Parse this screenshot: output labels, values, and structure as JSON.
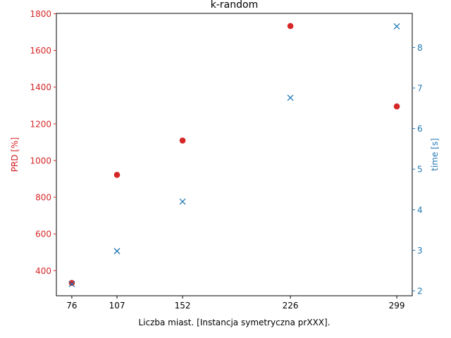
{
  "chart_data": {
    "type": "scatter",
    "title": "k-random",
    "xlabel": "Liczba miast. [Instancja symetryczna prXXX].",
    "x_ticks": [
      76,
      107,
      152,
      226,
      299
    ],
    "xlim": [
      65.4,
      309.6
    ],
    "y_left": {
      "label": "PRD [%]",
      "color": "#d62728",
      "ticks": [
        400,
        600,
        800,
        1000,
        1200,
        1400,
        1600,
        1800
      ],
      "ylim": [
        263,
        1802
      ]
    },
    "y_right": {
      "label": "time [s]",
      "color": "#1f77b4",
      "ticks": [
        2,
        3,
        4,
        5,
        6,
        7,
        8
      ],
      "ylim": [
        1.88,
        8.84
      ]
    },
    "series": [
      {
        "axis": "left",
        "marker": "circle",
        "color": "#d62728",
        "x": [
          76,
          107,
          152,
          226,
          299
        ],
        "y": [
          333,
          922,
          1109,
          1733,
          1295
        ]
      },
      {
        "axis": "right",
        "marker": "x",
        "color": "#1f77b4",
        "x": [
          76,
          107,
          152,
          226,
          299
        ],
        "y": [
          2.17,
          2.98,
          4.2,
          6.76,
          8.52
        ]
      }
    ],
    "grid": false
  }
}
